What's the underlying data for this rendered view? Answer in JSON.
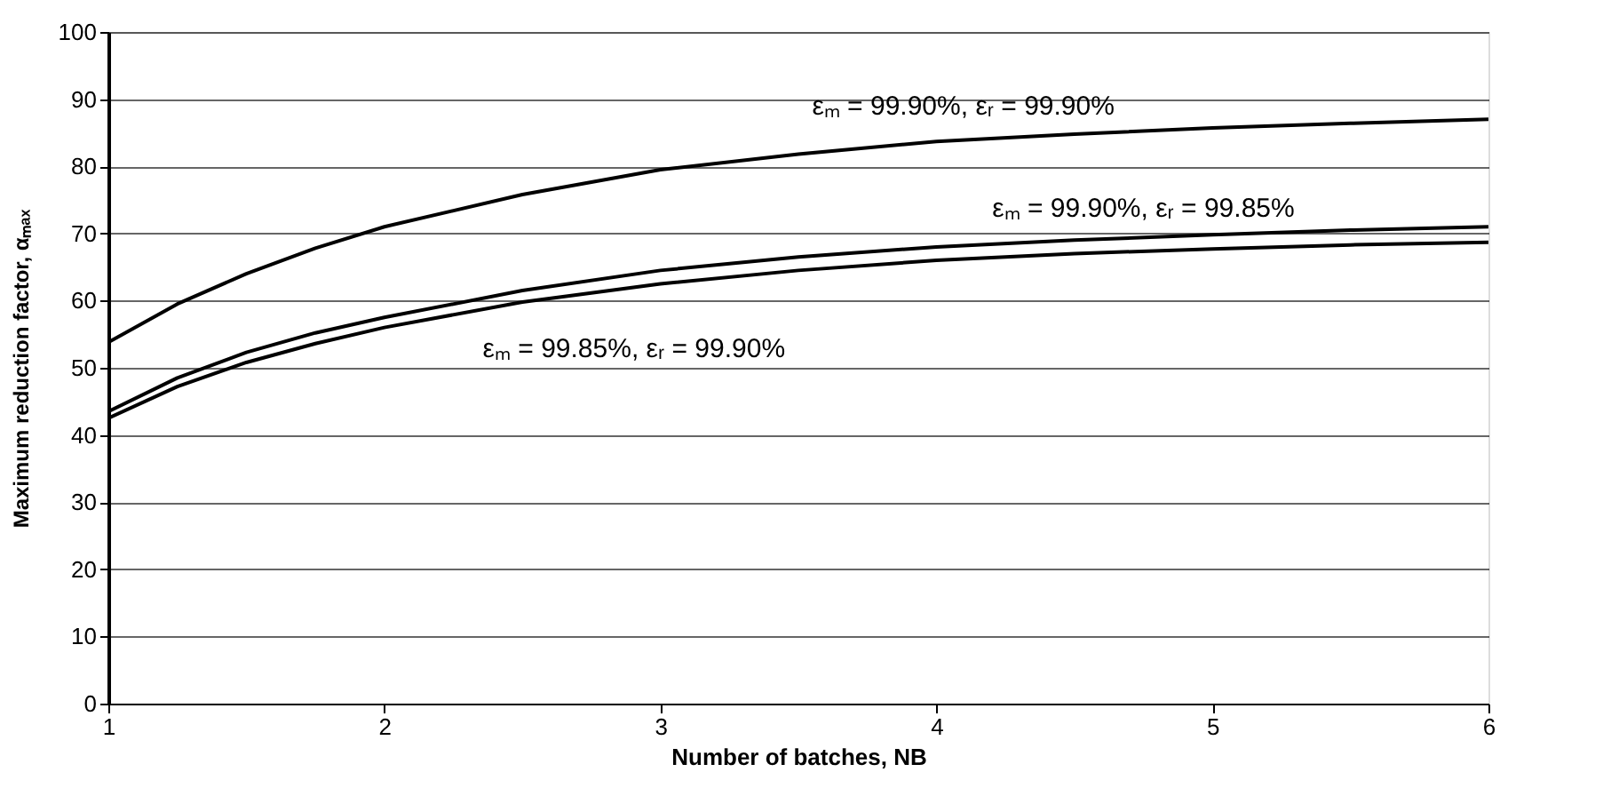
{
  "chart_data": {
    "type": "line",
    "xlabel": "Number of batches, NB",
    "ylabel": "Maximum reduction factor, αₘₐₓ",
    "xlim": [
      1,
      6
    ],
    "xticks": [
      1,
      2,
      3,
      4,
      5,
      6
    ],
    "ylim": [
      0,
      100
    ],
    "yticks": [
      0,
      10,
      20,
      30,
      40,
      50,
      60,
      70,
      80,
      90,
      100
    ],
    "grid": "y",
    "legend": false,
    "marker": "none",
    "line_style": "solid",
    "x": [
      1,
      1.25,
      1.5,
      1.75,
      2,
      2.5,
      3,
      3.5,
      4,
      4.5,
      5,
      5.5,
      6
    ],
    "series": [
      {
        "name": "εₘ = 99.90%, εᵣ = 99.90%",
        "color": "#000000",
        "values": [
          53.8,
          59.5,
          64,
          67.8,
          71,
          75.8,
          79.5,
          81.8,
          83.7,
          84.8,
          85.7,
          86.4,
          87
        ]
      },
      {
        "name": "εₘ = 99.90%, εᵣ = 99.85%",
        "color": "#000000",
        "values": [
          43.5,
          48.5,
          52.3,
          55.2,
          57.5,
          61.5,
          64.5,
          66.5,
          68,
          69,
          69.8,
          70.5,
          71
        ]
      },
      {
        "name": "εₘ = 99.85%, εᵣ = 99.90%",
        "color": "#000000",
        "values": [
          42.5,
          47.2,
          50.8,
          53.6,
          56,
          59.8,
          62.5,
          64.5,
          66,
          67,
          67.7,
          68.3,
          68.7
        ]
      }
    ]
  }
}
